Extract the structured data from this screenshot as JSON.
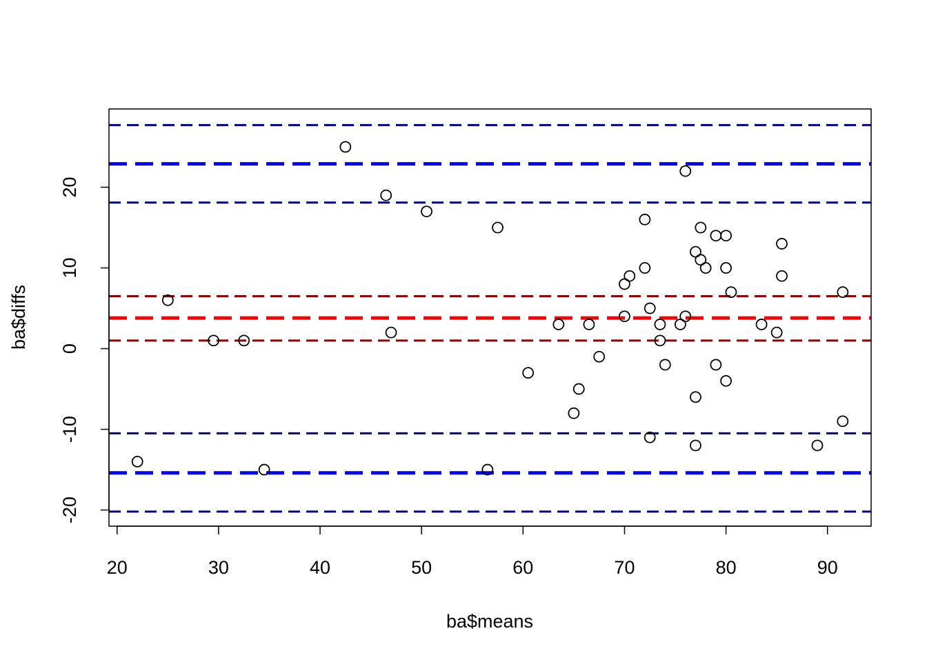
{
  "chart_data": {
    "type": "scatter",
    "title": "",
    "xlabel": "ba$means",
    "ylabel": "ba$diffs",
    "xlim": [
      19.2,
      94.3
    ],
    "ylim": [
      -22,
      29.7
    ],
    "x_ticks": [
      20,
      30,
      40,
      50,
      60,
      70,
      80,
      90
    ],
    "y_ticks": [
      -20,
      -10,
      0,
      10,
      20
    ],
    "x_tick_labels": [
      "20",
      "30",
      "40",
      "50",
      "60",
      "70",
      "80",
      "90"
    ],
    "y_tick_labels": [
      "-20",
      "-10",
      "0",
      "10",
      "20"
    ],
    "grid": false,
    "points": [
      {
        "x": 22,
        "y": -14
      },
      {
        "x": 25,
        "y": 6
      },
      {
        "x": 29.5,
        "y": 1
      },
      {
        "x": 32.5,
        "y": 1
      },
      {
        "x": 34.5,
        "y": -15
      },
      {
        "x": 42.5,
        "y": 25
      },
      {
        "x": 46.5,
        "y": 19
      },
      {
        "x": 47,
        "y": 2
      },
      {
        "x": 50.5,
        "y": 17
      },
      {
        "x": 56.5,
        "y": -15
      },
      {
        "x": 57.5,
        "y": 15
      },
      {
        "x": 60.5,
        "y": -3
      },
      {
        "x": 63.5,
        "y": 3
      },
      {
        "x": 65,
        "y": -8
      },
      {
        "x": 65.5,
        "y": -5
      },
      {
        "x": 66.5,
        "y": 3
      },
      {
        "x": 67.5,
        "y": -1
      },
      {
        "x": 70,
        "y": 8
      },
      {
        "x": 70,
        "y": 4
      },
      {
        "x": 70.5,
        "y": 9
      },
      {
        "x": 72,
        "y": 16
      },
      {
        "x": 72,
        "y": 10
      },
      {
        "x": 72.5,
        "y": 5
      },
      {
        "x": 72.5,
        "y": -11
      },
      {
        "x": 73.5,
        "y": 3
      },
      {
        "x": 73.5,
        "y": 1
      },
      {
        "x": 74,
        "y": -2
      },
      {
        "x": 75.5,
        "y": 3
      },
      {
        "x": 76,
        "y": 22
      },
      {
        "x": 76,
        "y": 4
      },
      {
        "x": 77,
        "y": 12
      },
      {
        "x": 77,
        "y": -6
      },
      {
        "x": 77,
        "y": -12
      },
      {
        "x": 77.5,
        "y": 15
      },
      {
        "x": 77.5,
        "y": 11
      },
      {
        "x": 78,
        "y": 10
      },
      {
        "x": 79,
        "y": 14
      },
      {
        "x": 79,
        "y": -2
      },
      {
        "x": 80,
        "y": 14
      },
      {
        "x": 80,
        "y": 10
      },
      {
        "x": 80,
        "y": -4
      },
      {
        "x": 80.5,
        "y": 7
      },
      {
        "x": 83.5,
        "y": 3
      },
      {
        "x": 85,
        "y": 2
      },
      {
        "x": 85.5,
        "y": 13
      },
      {
        "x": 85.5,
        "y": 9
      },
      {
        "x": 89,
        "y": -12
      },
      {
        "x": 91.5,
        "y": 7
      },
      {
        "x": 91.5,
        "y": -9
      }
    ],
    "reference_lines": [
      {
        "name": "upper-loa-ci-upper",
        "y": 27.7,
        "color": "#000080",
        "width": 3,
        "dash": "dashed"
      },
      {
        "name": "upper-loa",
        "y": 22.9,
        "color": "#0000FF",
        "width": 5,
        "dash": "dashed"
      },
      {
        "name": "upper-loa-ci-lower",
        "y": 18.1,
        "color": "#000080",
        "width": 3,
        "dash": "dashed"
      },
      {
        "name": "mean-diff-ci-upper",
        "y": 6.5,
        "color": "#8B0000",
        "width": 3,
        "dash": "dashed"
      },
      {
        "name": "mean-diff",
        "y": 3.8,
        "color": "#FF0000",
        "width": 5,
        "dash": "dashed"
      },
      {
        "name": "mean-diff-ci-lower",
        "y": 1.0,
        "color": "#8B0000",
        "width": 3,
        "dash": "dashed"
      },
      {
        "name": "lower-loa-ci-upper",
        "y": -10.5,
        "color": "#000080",
        "width": 3,
        "dash": "dashed"
      },
      {
        "name": "lower-loa",
        "y": -15.4,
        "color": "#0000FF",
        "width": 5,
        "dash": "dashed"
      },
      {
        "name": "lower-loa-ci-lower",
        "y": -20.2,
        "color": "#000080",
        "width": 3,
        "dash": "dashed"
      }
    ]
  }
}
